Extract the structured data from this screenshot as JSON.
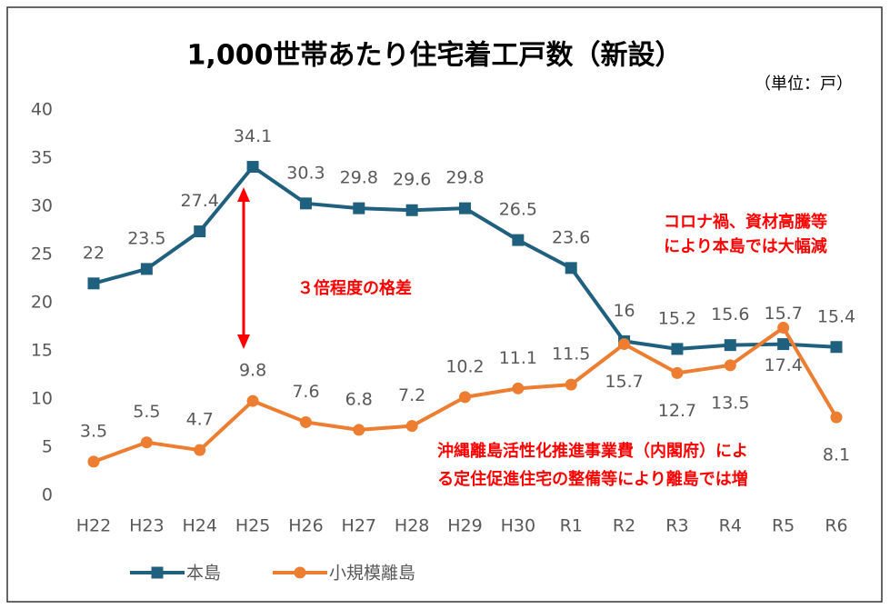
{
  "chart_data": {
    "type": "line",
    "title": "1,000世帯あたり住宅着工戸数（新設）",
    "unit_label": "（単位：戸）",
    "categories": [
      "H22",
      "H23",
      "H24",
      "H25",
      "H26",
      "H27",
      "H28",
      "H29",
      "H30",
      "R1",
      "R2",
      "R3",
      "R4",
      "R5",
      "R6"
    ],
    "series": [
      {
        "name": "本島",
        "color": "#20607f",
        "marker": "square",
        "values": [
          22,
          23.5,
          27.4,
          34.1,
          30.3,
          29.8,
          29.6,
          29.8,
          26.5,
          23.6,
          16,
          15.2,
          15.6,
          15.7,
          15.4
        ]
      },
      {
        "name": "小規模離島",
        "color": "#ed7d31",
        "marker": "circle",
        "values": [
          3.5,
          5.5,
          4.7,
          9.8,
          7.6,
          6.8,
          7.2,
          10.2,
          11.1,
          11.5,
          15.7,
          12.7,
          13.5,
          17.4,
          8.1
        ]
      }
    ],
    "ylim": [
      0,
      40
    ],
    "yticks": [
      0,
      5,
      10,
      15,
      20,
      25,
      30,
      35,
      40
    ],
    "grid": false,
    "legend": "bottom",
    "annotations": {
      "gap": "３倍程度の格差",
      "mainland": [
        "コロナ禍、資材高騰等",
        "により本島では大幅減"
      ],
      "islands": [
        "沖縄離島活性化推進事業費（内閣府）によ",
        "る定住促進住宅の整備等により離島では増"
      ]
    }
  }
}
